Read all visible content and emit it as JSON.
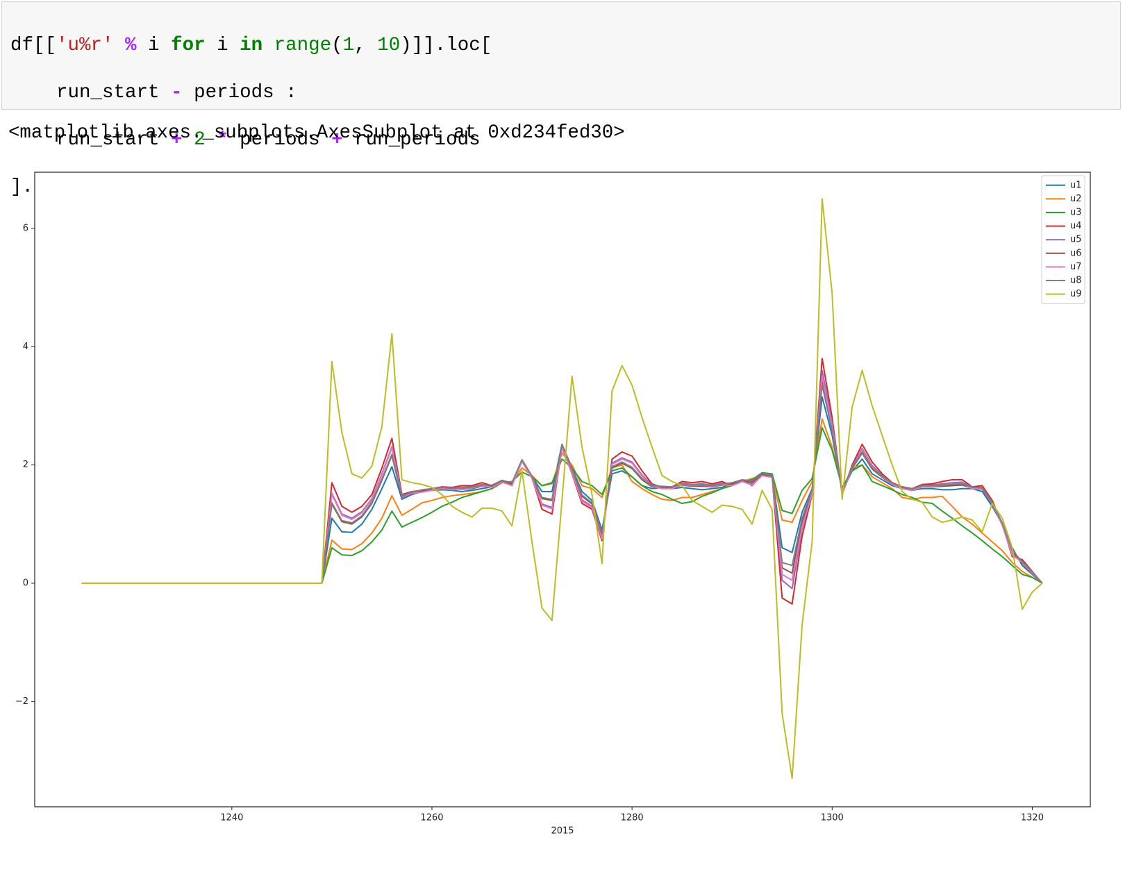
{
  "code": {
    "lines": [
      [
        "df[[",
        "'u%r'",
        " %",
        " i ",
        "for",
        " i ",
        "in",
        " range",
        "(",
        "1",
        ", ",
        "10",
        ")]].loc["
      ],
      [
        "    run_start ",
        "-",
        " periods :"
      ],
      [
        "    run_start ",
        "+",
        " 2",
        " *",
        " periods ",
        "+",
        " run_periods"
      ],
      [
        "].plot()"
      ]
    ]
  },
  "output": "<matplotlib.axes._subplots.AxesSubplot at 0xd234fed30>",
  "chart_data": {
    "type": "line",
    "xlabel": "2015",
    "x": [
      1225,
      1226,
      1227,
      1228,
      1229,
      1230,
      1231,
      1232,
      1233,
      1234,
      1235,
      1236,
      1237,
      1238,
      1239,
      1240,
      1241,
      1242,
      1243,
      1244,
      1245,
      1246,
      1247,
      1248,
      1249,
      1250,
      1251,
      1252,
      1253,
      1254,
      1255,
      1256,
      1257,
      1258,
      1259,
      1260,
      1261,
      1262,
      1263,
      1264,
      1265,
      1266,
      1267,
      1268,
      1269,
      1270,
      1271,
      1272,
      1273,
      1274,
      1275,
      1276,
      1277,
      1278,
      1279,
      1280,
      1281,
      1282,
      1283,
      1284,
      1285,
      1286,
      1287,
      1288,
      1289,
      1290,
      1291,
      1292,
      1293,
      1294,
      1295,
      1296,
      1297,
      1298,
      1299,
      1300,
      1301,
      1302,
      1303,
      1304,
      1305,
      1306,
      1307,
      1308,
      1309,
      1310,
      1311,
      1312,
      1313,
      1314,
      1315,
      1316,
      1317,
      1318,
      1319,
      1320,
      1321
    ],
    "xlim": [
      1220.3,
      1325.8
    ],
    "xticks": [
      1240,
      1260,
      1280,
      1300,
      1320
    ],
    "ylim": [
      -3.78,
      6.95
    ],
    "yticks": [
      {
        "value": -2,
        "label": "−2"
      },
      0,
      2,
      4,
      6
    ],
    "legend": "upper right",
    "series": [
      {
        "name": "u1",
        "color": "#1f77b4",
        "values": [
          0,
          0,
          0,
          0,
          0,
          0,
          0,
          0,
          0,
          0,
          0,
          0,
          0,
          0,
          0,
          0,
          0,
          0,
          0,
          0,
          0,
          0,
          0,
          0,
          0,
          1.1,
          0.87,
          0.86,
          1.0,
          1.25,
          1.6,
          1.97,
          1.42,
          1.5,
          1.55,
          1.57,
          1.58,
          1.57,
          1.55,
          1.57,
          1.6,
          1.63,
          1.72,
          1.7,
          2.07,
          1.8,
          1.55,
          1.55,
          2.35,
          1.95,
          1.55,
          1.4,
          0.9,
          1.85,
          1.9,
          1.8,
          1.65,
          1.6,
          1.62,
          1.6,
          1.62,
          1.6,
          1.58,
          1.6,
          1.62,
          1.7,
          1.72,
          1.75,
          1.85,
          1.82,
          0.6,
          0.52,
          1.2,
          1.6,
          3.15,
          2.5,
          1.55,
          1.9,
          2.1,
          1.85,
          1.75,
          1.65,
          1.6,
          1.57,
          1.6,
          1.6,
          1.58,
          1.58,
          1.6,
          1.6,
          1.55,
          1.3,
          1.0,
          0.6,
          0.3,
          0.15,
          0
        ]
      },
      {
        "name": "u2",
        "color": "#ff7f0e",
        "values": [
          0,
          0,
          0,
          0,
          0,
          0,
          0,
          0,
          0,
          0,
          0,
          0,
          0,
          0,
          0,
          0,
          0,
          0,
          0,
          0,
          0,
          0,
          0,
          0,
          0,
          0.73,
          0.58,
          0.57,
          0.67,
          0.85,
          1.1,
          1.48,
          1.15,
          1.25,
          1.36,
          1.4,
          1.45,
          1.48,
          1.5,
          1.52,
          1.55,
          1.6,
          1.7,
          1.7,
          1.95,
          1.82,
          1.65,
          1.68,
          2.2,
          2.0,
          1.65,
          1.6,
          1.45,
          1.95,
          2.0,
          1.72,
          1.6,
          1.5,
          1.42,
          1.4,
          1.45,
          1.45,
          1.5,
          1.55,
          1.6,
          1.67,
          1.72,
          1.77,
          1.82,
          1.82,
          1.07,
          1.03,
          1.4,
          1.72,
          2.78,
          2.3,
          1.6,
          1.95,
          2.0,
          1.8,
          1.7,
          1.6,
          1.45,
          1.42,
          1.45,
          1.45,
          1.47,
          1.3,
          1.12,
          1.0,
          0.85,
          0.7,
          0.55,
          0.35,
          0.2,
          0.1,
          0
        ]
      },
      {
        "name": "u3",
        "color": "#2ca02c",
        "values": [
          0,
          0,
          0,
          0,
          0,
          0,
          0,
          0,
          0,
          0,
          0,
          0,
          0,
          0,
          0,
          0,
          0,
          0,
          0,
          0,
          0,
          0,
          0,
          0,
          0,
          0.6,
          0.48,
          0.47,
          0.55,
          0.7,
          0.9,
          1.22,
          0.95,
          1.03,
          1.11,
          1.2,
          1.3,
          1.37,
          1.45,
          1.5,
          1.55,
          1.6,
          1.7,
          1.72,
          1.88,
          1.8,
          1.65,
          1.7,
          2.1,
          1.95,
          1.72,
          1.65,
          1.5,
          1.9,
          1.95,
          1.8,
          1.65,
          1.55,
          1.5,
          1.42,
          1.35,
          1.38,
          1.47,
          1.53,
          1.6,
          1.65,
          1.72,
          1.75,
          1.87,
          1.85,
          1.23,
          1.18,
          1.57,
          1.77,
          2.63,
          2.25,
          1.62,
          1.9,
          2.0,
          1.72,
          1.65,
          1.58,
          1.5,
          1.45,
          1.37,
          1.35,
          1.22,
          1.1,
          0.97,
          0.85,
          0.72,
          0.58,
          0.45,
          0.3,
          0.15,
          0.1,
          0
        ]
      },
      {
        "name": "u4",
        "color": "#d62728",
        "values": [
          0,
          0,
          0,
          0,
          0,
          0,
          0,
          0,
          0,
          0,
          0,
          0,
          0,
          0,
          0,
          0,
          0,
          0,
          0,
          0,
          0,
          0,
          0,
          0,
          0,
          1.7,
          1.3,
          1.2,
          1.3,
          1.5,
          1.95,
          2.45,
          1.5,
          1.55,
          1.57,
          1.6,
          1.63,
          1.62,
          1.65,
          1.65,
          1.7,
          1.65,
          1.73,
          1.65,
          2.08,
          1.78,
          1.25,
          1.17,
          2.3,
          1.85,
          1.35,
          1.25,
          0.72,
          2.1,
          2.22,
          2.15,
          1.9,
          1.68,
          1.62,
          1.63,
          1.72,
          1.7,
          1.72,
          1.68,
          1.72,
          1.65,
          1.75,
          1.65,
          1.83,
          1.8,
          -0.25,
          -0.35,
          0.8,
          1.5,
          3.8,
          2.8,
          1.5,
          2.0,
          2.35,
          2.05,
          1.85,
          1.7,
          1.63,
          1.6,
          1.67,
          1.68,
          1.72,
          1.75,
          1.75,
          1.63,
          1.65,
          1.4,
          1.0,
          0.45,
          0.4,
          0.2,
          0
        ]
      },
      {
        "name": "u5",
        "color": "#9467bd",
        "values": [
          0,
          0,
          0,
          0,
          0,
          0,
          0,
          0,
          0,
          0,
          0,
          0,
          0,
          0,
          0,
          0,
          0,
          0,
          0,
          0,
          0,
          0,
          0,
          0,
          0,
          1.52,
          1.17,
          1.1,
          1.21,
          1.43,
          1.85,
          2.31,
          1.48,
          1.54,
          1.56,
          1.59,
          1.62,
          1.6,
          1.62,
          1.63,
          1.67,
          1.64,
          1.73,
          1.67,
          2.08,
          1.79,
          1.34,
          1.28,
          2.31,
          1.88,
          1.41,
          1.3,
          0.77,
          2.03,
          2.12,
          2.05,
          1.83,
          1.66,
          1.62,
          1.62,
          1.69,
          1.67,
          1.68,
          1.66,
          1.69,
          1.67,
          1.74,
          1.68,
          1.84,
          1.81,
          0.05,
          -0.09,
          0.92,
          1.53,
          3.6,
          2.71,
          1.52,
          1.97,
          2.28,
          1.99,
          1.82,
          1.69,
          1.62,
          1.59,
          1.65,
          1.66,
          1.68,
          1.7,
          1.71,
          1.62,
          1.62,
          1.37,
          1.0,
          0.5,
          0.37,
          0.19,
          0
        ]
      },
      {
        "name": "u6",
        "color": "#8c564b",
        "values": [
          0,
          0,
          0,
          0,
          0,
          0,
          0,
          0,
          0,
          0,
          0,
          0,
          0,
          0,
          0,
          0,
          0,
          0,
          0,
          0,
          0,
          0,
          0,
          0,
          0,
          1.34,
          1.04,
          1.0,
          1.12,
          1.35,
          1.74,
          2.16,
          1.45,
          1.52,
          1.56,
          1.58,
          1.6,
          1.59,
          1.59,
          1.6,
          1.64,
          1.64,
          1.72,
          1.68,
          2.07,
          1.79,
          1.43,
          1.4,
          2.33,
          1.91,
          1.47,
          1.34,
          0.83,
          1.95,
          2.03,
          1.94,
          1.75,
          1.63,
          1.62,
          1.61,
          1.66,
          1.64,
          1.64,
          1.63,
          1.66,
          1.68,
          1.73,
          1.71,
          1.84,
          1.81,
          0.26,
          0.17,
          1.04,
          1.56,
          3.41,
          2.62,
          1.53,
          1.94,
          2.2,
          1.93,
          1.79,
          1.67,
          1.61,
          1.58,
          1.63,
          1.63,
          1.64,
          1.65,
          1.66,
          1.61,
          1.59,
          1.34,
          1.0,
          0.54,
          0.34,
          0.17,
          0
        ]
      },
      {
        "name": "u7",
        "color": "#e377c2",
        "values": [
          0,
          0,
          0,
          0,
          0,
          0,
          0,
          0,
          0,
          0,
          0,
          0,
          0,
          0,
          0,
          0,
          0,
          0,
          0,
          0,
          0,
          0,
          0,
          0,
          0,
          1.5,
          1.15,
          1.08,
          1.19,
          1.41,
          1.83,
          2.29,
          1.46,
          1.52,
          1.54,
          1.57,
          1.6,
          1.58,
          1.6,
          1.61,
          1.65,
          1.62,
          1.71,
          1.65,
          2.06,
          1.77,
          1.32,
          1.26,
          2.29,
          1.86,
          1.39,
          1.28,
          0.75,
          2.01,
          2.1,
          2.03,
          1.81,
          1.64,
          1.6,
          1.6,
          1.67,
          1.65,
          1.66,
          1.64,
          1.67,
          1.65,
          1.72,
          1.66,
          1.82,
          1.79,
          0.15,
          0.05,
          0.95,
          1.51,
          3.5,
          2.65,
          1.5,
          1.95,
          2.26,
          1.97,
          1.8,
          1.67,
          1.6,
          1.57,
          1.63,
          1.64,
          1.66,
          1.68,
          1.69,
          1.6,
          1.6,
          1.35,
          0.98,
          0.48,
          0.35,
          0.17,
          0
        ]
      },
      {
        "name": "u8",
        "color": "#7f7f7f",
        "values": [
          0,
          0,
          0,
          0,
          0,
          0,
          0,
          0,
          0,
          0,
          0,
          0,
          0,
          0,
          0,
          0,
          0,
          0,
          0,
          0,
          0,
          0,
          0,
          0,
          0,
          1.36,
          1.06,
          1.02,
          1.14,
          1.37,
          1.76,
          2.18,
          1.47,
          1.54,
          1.58,
          1.6,
          1.62,
          1.61,
          1.61,
          1.62,
          1.66,
          1.66,
          1.74,
          1.7,
          2.09,
          1.81,
          1.45,
          1.42,
          2.35,
          1.93,
          1.49,
          1.36,
          0.85,
          1.97,
          2.05,
          1.96,
          1.77,
          1.65,
          1.64,
          1.63,
          1.68,
          1.66,
          1.66,
          1.65,
          1.68,
          1.7,
          1.75,
          1.73,
          1.86,
          1.83,
          0.35,
          0.3,
          1.1,
          1.58,
          3.35,
          2.58,
          1.55,
          1.96,
          2.22,
          1.95,
          1.81,
          1.69,
          1.63,
          1.6,
          1.65,
          1.65,
          1.66,
          1.67,
          1.68,
          1.63,
          1.61,
          1.36,
          1.02,
          0.56,
          0.36,
          0.19,
          0
        ]
      },
      {
        "name": "u9",
        "color": "#bcbd22",
        "values": [
          0,
          0,
          0,
          0,
          0,
          0,
          0,
          0,
          0,
          0,
          0,
          0,
          0,
          0,
          0,
          0,
          0,
          0,
          0,
          0,
          0,
          0,
          0,
          0,
          0,
          3.75,
          2.55,
          1.85,
          1.78,
          1.98,
          2.65,
          4.22,
          1.75,
          1.7,
          1.67,
          1.62,
          1.5,
          1.3,
          1.2,
          1.12,
          1.27,
          1.27,
          1.22,
          0.97,
          1.9,
          0.7,
          -0.42,
          -0.63,
          1.4,
          3.5,
          2.3,
          1.5,
          0.33,
          3.25,
          3.68,
          3.35,
          2.8,
          2.3,
          1.82,
          1.72,
          1.65,
          1.4,
          1.3,
          1.2,
          1.32,
          1.3,
          1.25,
          1.0,
          1.57,
          1.25,
          -2.2,
          -3.3,
          -0.7,
          0.7,
          6.5,
          4.9,
          1.42,
          2.98,
          3.6,
          3.0,
          2.5,
          2.0,
          1.55,
          1.42,
          1.37,
          1.12,
          1.03,
          1.07,
          1.12,
          1.07,
          0.87,
          1.35,
          1.1,
          0.6,
          -0.44,
          -0.15,
          0
        ]
      }
    ]
  }
}
